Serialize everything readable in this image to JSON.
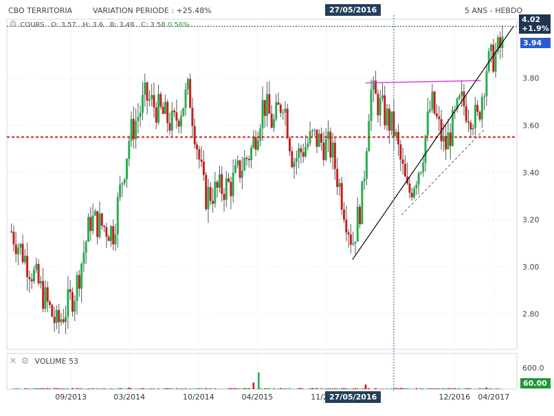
{
  "header": {
    "title": "CBO TERRITORIA",
    "variation": "VARIATION PERIODE : +25.48%",
    "cursor_date": "27/05/2016",
    "range_label": "5 ANS - HEBDO"
  },
  "legend": {
    "series_label": "COURS",
    "open": "O: 3.57",
    "high": "H: 3.6",
    "low": "B: 3.48",
    "close": "C: 3.58",
    "change": "0.56%"
  },
  "price_tags": {
    "last": "4.02",
    "last_change": "+1.9%",
    "cursor": "3.94",
    "volume": "60.00"
  },
  "volume_panel": {
    "label": "VOLUME",
    "value": "53",
    "axis_max": "600.0"
  },
  "colors": {
    "up": "#22b14c",
    "down": "#c81e1e",
    "support": "#d21919",
    "resistance": "#e040e0",
    "trend": "#000000",
    "cursor": "#1f5fa8",
    "tag_blue": "#2a5cd0",
    "tag_navy": "#1d3550",
    "tag_green": "#1a9a33"
  },
  "chart_data": {
    "type": "candlestick",
    "title": "CBO TERRITORIA",
    "xlabel": "",
    "ylabel": "",
    "ylim": [
      2.65,
      4.05
    ],
    "yticks": [
      2.8,
      3.0,
      3.2,
      3.4,
      3.6,
      3.8
    ],
    "xticks": [
      "09/2013",
      "03/2014",
      "10/2014",
      "04/2015",
      "11/2015",
      "27/05/2016",
      "12/2016",
      "04/2017"
    ],
    "support_level": 3.55,
    "anchors": [
      {
        "date": "2013-03-01",
        "price": 3.15
      },
      {
        "date": "2013-05-15",
        "price": 2.95
      },
      {
        "date": "2013-07-20",
        "price": 2.75
      },
      {
        "date": "2013-09-15",
        "price": 2.9
      },
      {
        "date": "2013-11-01",
        "price": 3.2
      },
      {
        "date": "2014-01-10",
        "price": 3.15
      },
      {
        "date": "2014-03-01",
        "price": 3.55
      },
      {
        "date": "2014-04-20",
        "price": 3.72
      },
      {
        "date": "2014-07-15",
        "price": 3.6
      },
      {
        "date": "2014-09-01",
        "price": 3.75
      },
      {
        "date": "2014-10-20",
        "price": 3.3
      },
      {
        "date": "2015-01-10",
        "price": 3.35
      },
      {
        "date": "2015-03-15",
        "price": 3.5
      },
      {
        "date": "2015-04-20",
        "price": 3.7
      },
      {
        "date": "2015-05-20",
        "price": 3.6
      },
      {
        "date": "2015-06-20",
        "price": 3.72
      },
      {
        "date": "2015-07-20",
        "price": 3.45
      },
      {
        "date": "2015-09-20",
        "price": 3.55
      },
      {
        "date": "2015-11-15",
        "price": 3.5
      },
      {
        "date": "2016-01-20",
        "price": 3.1
      },
      {
        "date": "2016-02-20",
        "price": 3.3
      },
      {
        "date": "2016-03-15",
        "price": 3.75
      },
      {
        "date": "2016-05-27",
        "price": 3.58
      },
      {
        "date": "2016-07-10",
        "price": 3.3
      },
      {
        "date": "2016-08-20",
        "price": 3.45
      },
      {
        "date": "2016-09-20",
        "price": 3.7
      },
      {
        "date": "2016-11-01",
        "price": 3.5
      },
      {
        "date": "2016-12-20",
        "price": 3.7
      },
      {
        "date": "2017-02-10",
        "price": 3.62
      },
      {
        "date": "2017-03-10",
        "price": 3.85
      },
      {
        "date": "2017-04-28",
        "price": 3.94
      }
    ],
    "drawn_lines": [
      {
        "name": "",
        "kind": "resistance",
        "from": {
          "date": "2016-03-01",
          "price": 3.78
        },
        "to": {
          "date": "2017-02-20",
          "price": 3.79
        }
      },
      {
        "name": "",
        "kind": "uptrend",
        "from": {
          "date": "2016-01-20",
          "price": 3.03
        },
        "to": {
          "date": "2017-06-01",
          "price": 4.02
        }
      },
      {
        "name": "",
        "kind": "uptrend-dashed",
        "from": {
          "date": "2016-06-20",
          "price": 3.22
        },
        "to": {
          "date": "2017-03-01",
          "price": 3.58
        }
      }
    ],
    "volume": {
      "ylim": [
        0,
        650
      ],
      "spikes": [
        {
          "date": "2015-04-05",
          "value": 610
        },
        {
          "date": "2015-03-20",
          "value": 240
        },
        {
          "date": "2016-03-01",
          "value": 170
        },
        {
          "date": "2014-03-01",
          "value": 60
        },
        {
          "date": "2017-03-10",
          "value": 60
        }
      ],
      "baseline": 30
    }
  }
}
